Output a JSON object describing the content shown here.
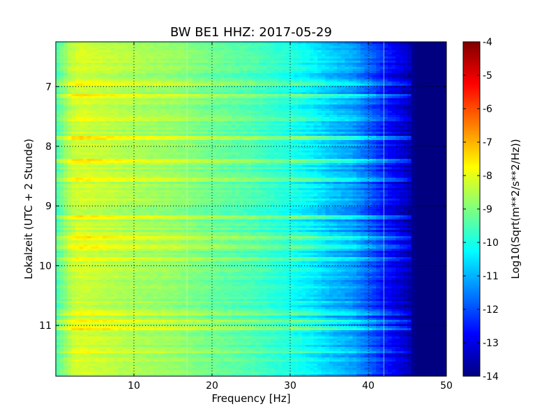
{
  "chart_data": {
    "type": "heatmap",
    "title": "BW BE1 HHZ: 2017-05-29",
    "xlabel": "Frequency [Hz]",
    "ylabel": "Lokalzeit (UTC + 2 Stunde)",
    "colorbar_label": "Log10(Sqrt(m**2/s**2/Hz))",
    "xlim": [
      0,
      50
    ],
    "ylim": [
      11.85,
      6.25
    ],
    "y_inverted": true,
    "x_ticks": [
      "10",
      "20",
      "30",
      "40",
      "50"
    ],
    "x_tick_values": [
      10,
      20,
      30,
      40,
      50
    ],
    "y_ticks": [
      "7",
      "8",
      "9",
      "10",
      "11"
    ],
    "y_tick_values": [
      7,
      8,
      9,
      10,
      11
    ],
    "grid": true,
    "colormap": "jet",
    "color_range": [
      -14,
      -4
    ],
    "colorbar_ticks": [
      "-4",
      "-5",
      "-6",
      "-7",
      "-8",
      "-9",
      "-10",
      "-11",
      "-12",
      "-13",
      "-14"
    ],
    "colorbar_tick_values": [
      -4,
      -5,
      -6,
      -7,
      -8,
      -9,
      -10,
      -11,
      -12,
      -13,
      -14
    ],
    "spectral_profile": {
      "frequency_hz": [
        0,
        2,
        3,
        5,
        10,
        15,
        20,
        25,
        30,
        33,
        35,
        38,
        40,
        42,
        45,
        46,
        50
      ],
      "level": [
        -9.6,
        -8.4,
        -8.2,
        -8.3,
        -8.6,
        -8.8,
        -9.2,
        -9.5,
        -10.0,
        -10.4,
        -10.8,
        -11.2,
        -11.8,
        -12.5,
        -13.4,
        -14.0,
        -14.0
      ]
    },
    "spectral_lines_hz": [
      16.8,
      42.0
    ],
    "strong_rows_hours": [
      6.95,
      7.15,
      7.55,
      7.85,
      8.25,
      8.55,
      9.2,
      9.55,
      9.68,
      9.9,
      10.8,
      10.95,
      11.05,
      11.45
    ]
  }
}
